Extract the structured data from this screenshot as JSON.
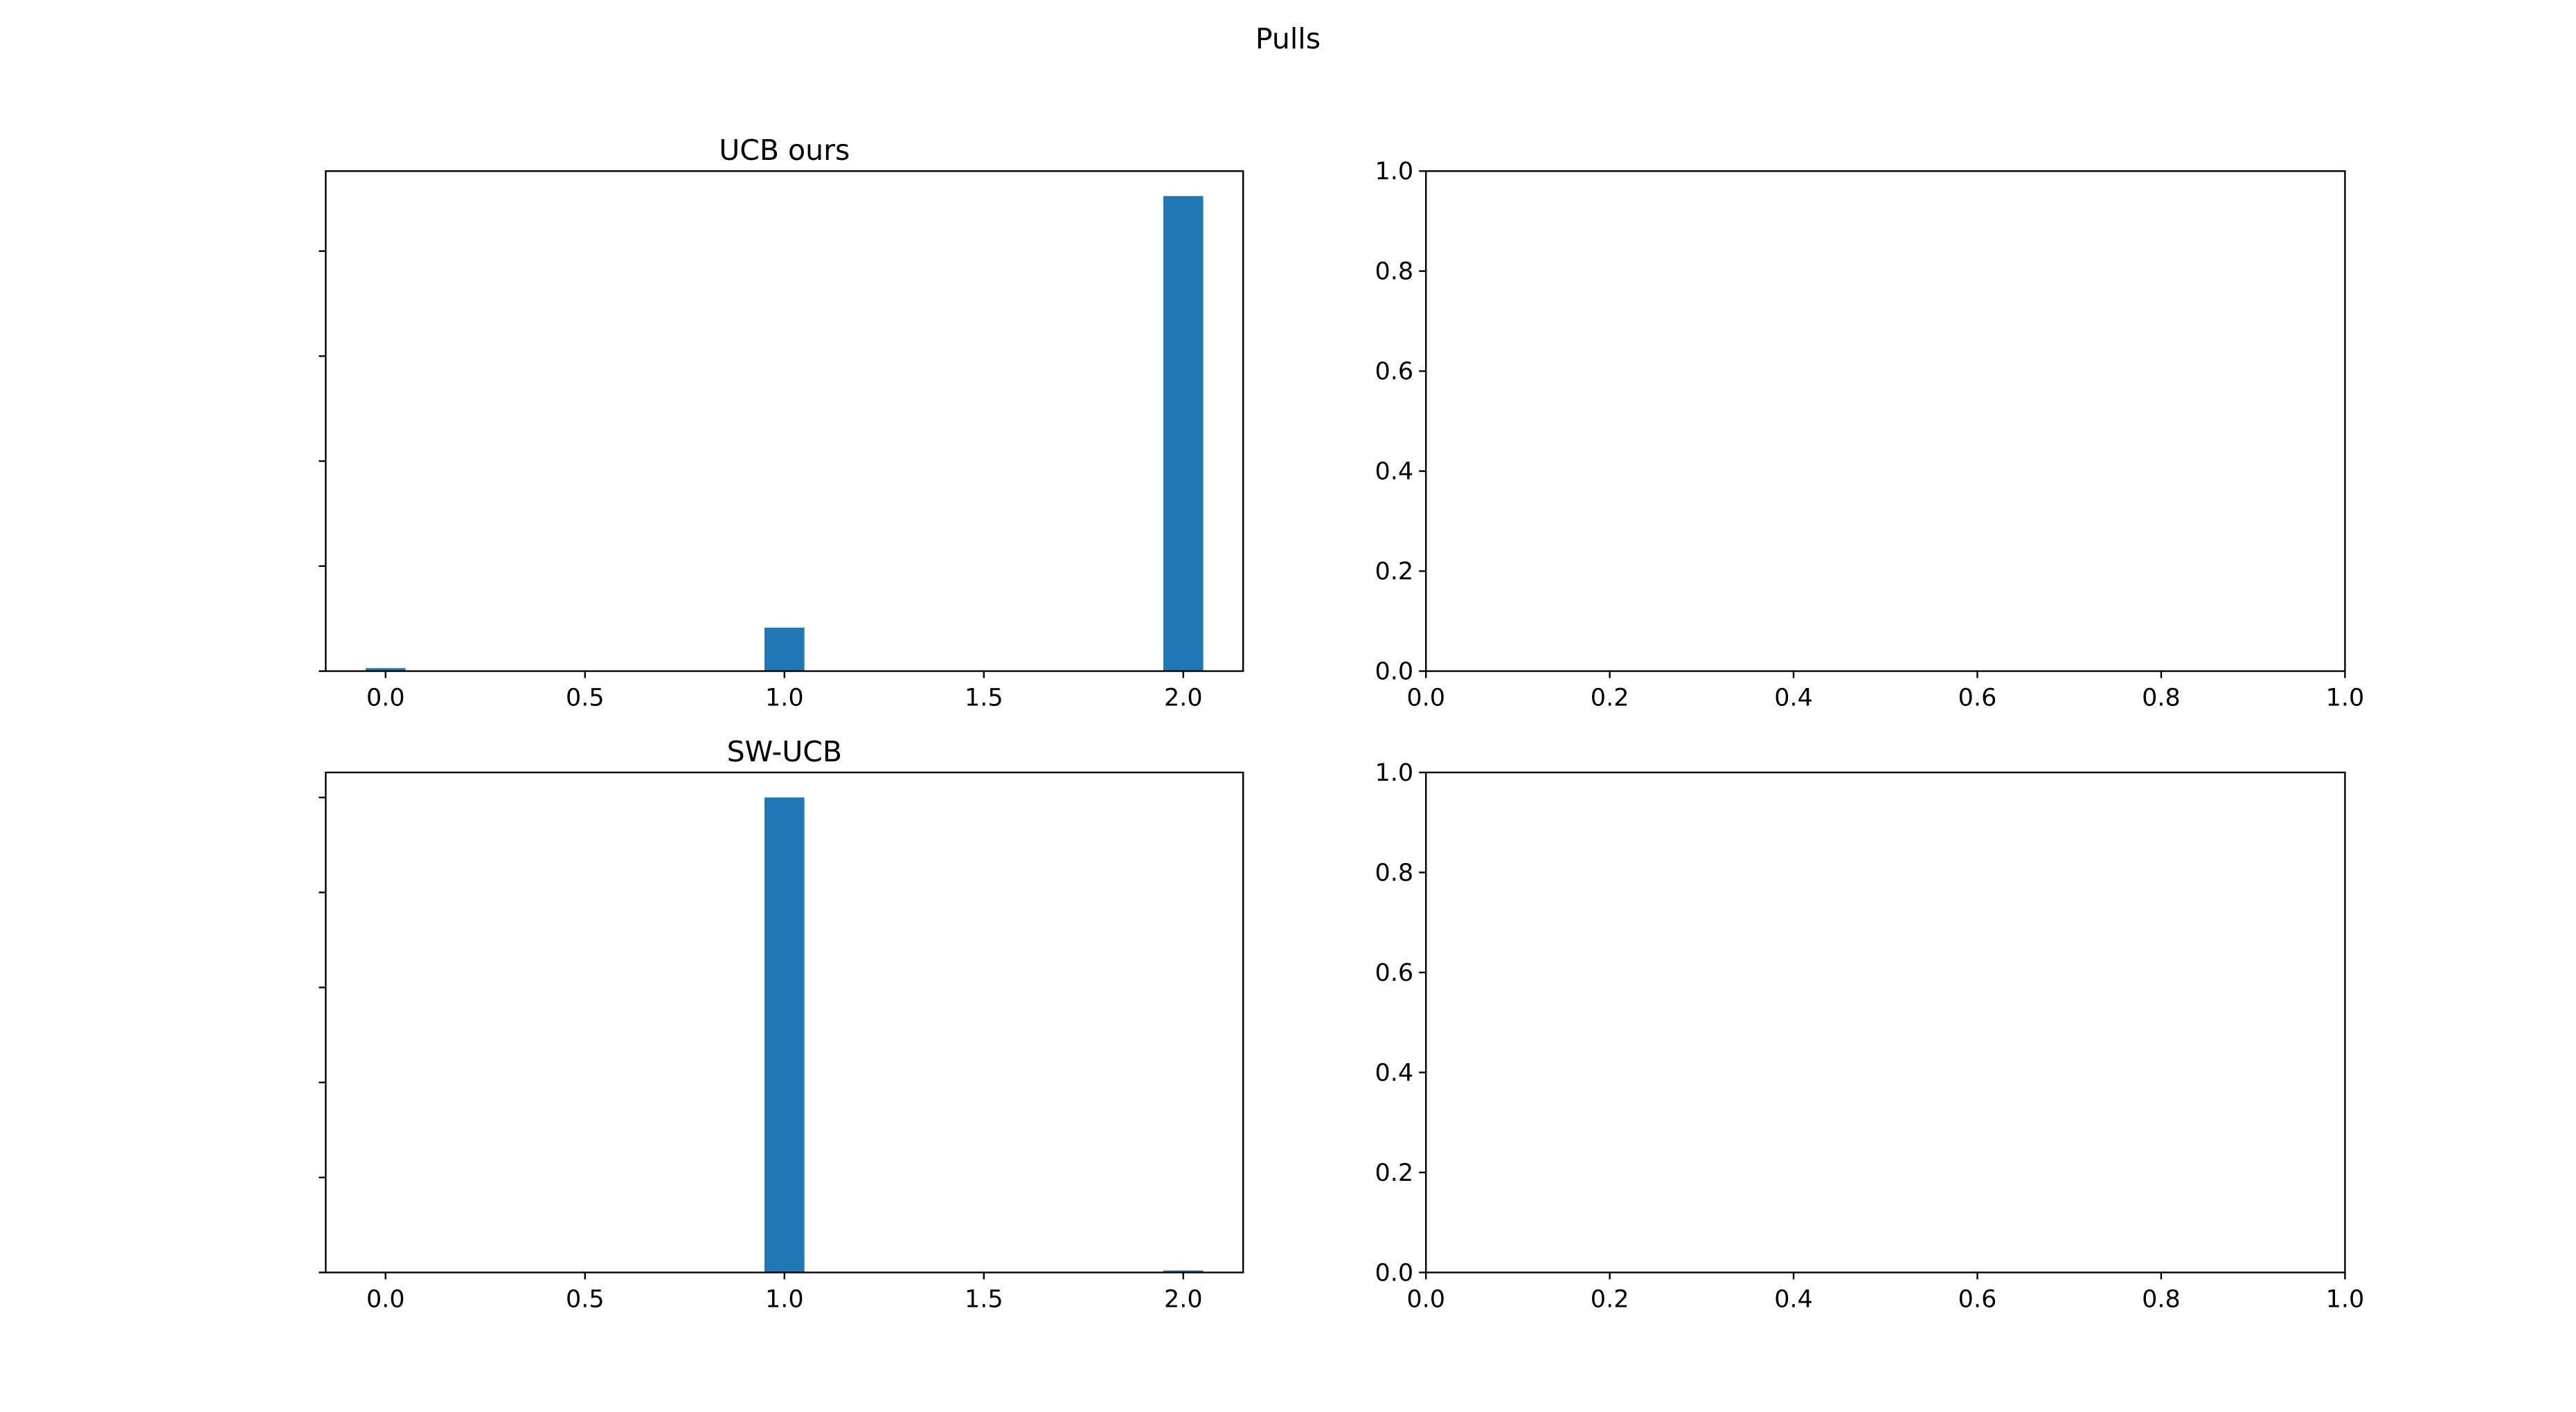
{
  "figure": {
    "suptitle": "Pulls"
  },
  "chart_data": [
    {
      "type": "bar",
      "title": "UCB ours",
      "xlabel": "",
      "ylabel": "",
      "xlim": [
        -0.15,
        2.15
      ],
      "ylim": [
        0,
        1.0
      ],
      "y_tick_values": [
        0,
        0.21,
        0.42,
        0.63,
        0.84
      ],
      "y_tick_labels_visible": false,
      "xticks": [
        0.0,
        0.5,
        1.0,
        1.5,
        2.0
      ],
      "xtick_labels": [
        "0.0",
        "0.5",
        "1.0",
        "1.5",
        "2.0"
      ],
      "bar_width": 0.1,
      "x": [
        0.0,
        1.0,
        2.0
      ],
      "values": [
        0.006,
        0.087,
        0.95
      ],
      "color": "#1f77b4",
      "grid": false
    },
    {
      "type": "empty",
      "title": "",
      "xlim": [
        0.0,
        1.0
      ],
      "ylim": [
        0.0,
        1.0
      ],
      "xticks": [
        0.0,
        0.2,
        0.4,
        0.6,
        0.8,
        1.0
      ],
      "xtick_labels": [
        "0.0",
        "0.2",
        "0.4",
        "0.6",
        "0.8",
        "1.0"
      ],
      "yticks": [
        0.0,
        0.2,
        0.4,
        0.6,
        0.8,
        1.0
      ],
      "ytick_labels": [
        "0.0",
        "0.2",
        "0.4",
        "0.6",
        "0.8",
        "1.0"
      ],
      "grid": false
    },
    {
      "type": "bar",
      "title": "SW-UCB",
      "xlabel": "",
      "ylabel": "",
      "xlim": [
        -0.15,
        2.15
      ],
      "ylim": [
        0,
        1.0
      ],
      "y_tick_values": [
        0,
        0.19,
        0.38,
        0.57,
        0.76,
        0.95
      ],
      "y_tick_labels_visible": false,
      "xticks": [
        0.0,
        0.5,
        1.0,
        1.5,
        2.0
      ],
      "xtick_labels": [
        "0.0",
        "0.5",
        "1.0",
        "1.5",
        "2.0"
      ],
      "bar_width": 0.1,
      "x": [
        0.0,
        1.0,
        2.0
      ],
      "values": [
        0.0,
        0.95,
        0.004
      ],
      "color": "#1f77b4",
      "grid": false
    },
    {
      "type": "empty",
      "title": "",
      "xlim": [
        0.0,
        1.0
      ],
      "ylim": [
        0.0,
        1.0
      ],
      "xticks": [
        0.0,
        0.2,
        0.4,
        0.6,
        0.8,
        1.0
      ],
      "xtick_labels": [
        "0.0",
        "0.2",
        "0.4",
        "0.6",
        "0.8",
        "1.0"
      ],
      "yticks": [
        0.0,
        0.2,
        0.4,
        0.6,
        0.8,
        1.0
      ],
      "ytick_labels": [
        "0.0",
        "0.2",
        "0.4",
        "0.6",
        "0.8",
        "1.0"
      ],
      "grid": false
    }
  ]
}
